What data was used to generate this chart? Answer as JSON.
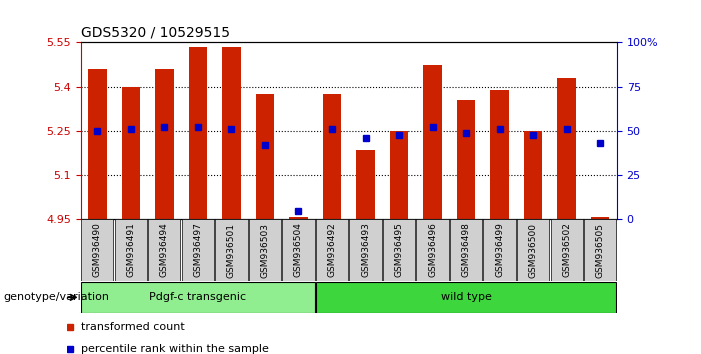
{
  "title": "GDS5320 / 10529515",
  "samples": [
    "GSM936490",
    "GSM936491",
    "GSM936494",
    "GSM936497",
    "GSM936501",
    "GSM936503",
    "GSM936504",
    "GSM936492",
    "GSM936493",
    "GSM936495",
    "GSM936496",
    "GSM936498",
    "GSM936499",
    "GSM936500",
    "GSM936502",
    "GSM936505"
  ],
  "transformed_counts": [
    5.46,
    5.4,
    5.46,
    5.535,
    5.535,
    5.375,
    4.957,
    5.375,
    5.185,
    5.25,
    5.475,
    5.355,
    5.39,
    5.25,
    5.43,
    4.957
  ],
  "percentile_ranks": [
    50,
    51,
    52,
    52,
    51,
    42,
    5,
    51,
    46,
    48,
    52,
    49,
    51,
    48,
    51,
    43
  ],
  "ylim_left": [
    4.95,
    5.55
  ],
  "ylim_right": [
    0,
    100
  ],
  "yticks_left": [
    4.95,
    5.1,
    5.25,
    5.4,
    5.55
  ],
  "yticks_right": [
    0,
    25,
    50,
    75,
    100
  ],
  "ytick_labels_left": [
    "4.95",
    "5.1",
    "5.25",
    "5.4",
    "5.55"
  ],
  "ytick_labels_right": [
    "0",
    "25",
    "50",
    "75",
    "100%"
  ],
  "groups": [
    {
      "label": "Pdgf-c transgenic",
      "start": 0,
      "end": 6,
      "color": "#90EE90"
    },
    {
      "label": "wild type",
      "start": 7,
      "end": 15,
      "color": "#3DD63D"
    }
  ],
  "bar_color": "#CC2200",
  "dot_color": "#0000CC",
  "base_value": 4.95,
  "tick_area_color": "#D0D0D0",
  "legend_items": [
    {
      "label": "transformed count",
      "color": "#CC2200"
    },
    {
      "label": "percentile rank within the sample",
      "color": "#0000CC"
    }
  ],
  "genotype_label": "genotype/variation",
  "ylabel_left_color": "#CC0000",
  "ylabel_right_color": "#0000CC",
  "grid_yticks": [
    5.1,
    5.25,
    5.4
  ]
}
